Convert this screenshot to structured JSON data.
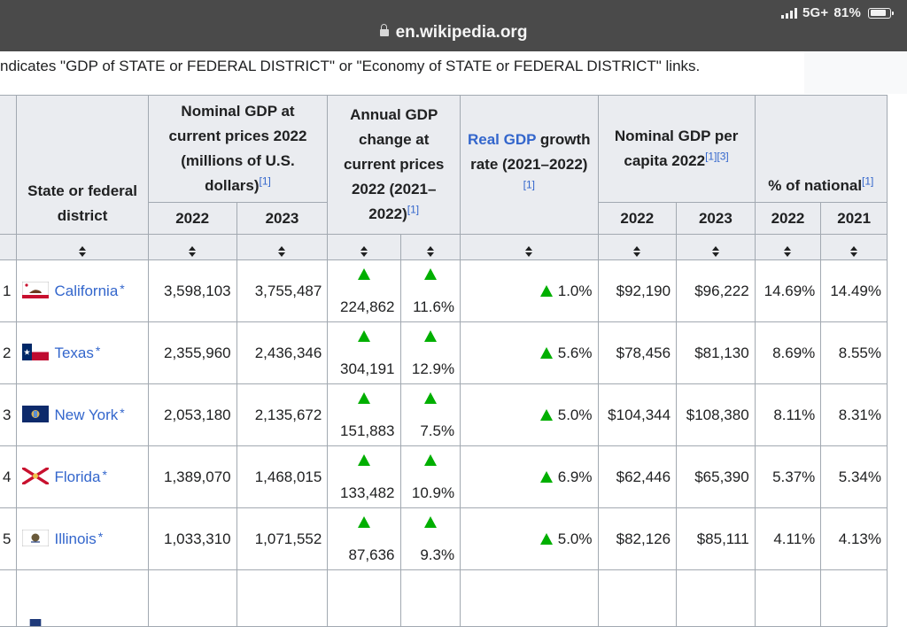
{
  "browser": {
    "signal_label": "5G+",
    "battery_label": "81%",
    "url": "en.wikipedia.org"
  },
  "notice": "ndicates \"GDP of STATE or FEDERAL DISTRICT\" or \"Economy of STATE or FEDERAL DISTRICT\" links.",
  "table": {
    "headers": {
      "state": "State or federal district",
      "nominal_gdp": "Nominal GDP at current prices 2022 (millions of U.S. dollars)",
      "nominal_gdp_ref": "[1]",
      "annual_change": "Annual GDP change at current prices 2022 (2021–2022)",
      "annual_change_ref": "[1]",
      "real_gdp_link": "Real GDP",
      "real_gdp_rest": "growth rate (2021–2022)",
      "real_gdp_ref": "[1]",
      "per_capita": "Nominal GDP per capita 2022",
      "per_capita_ref1": "[1]",
      "per_capita_ref2": "[3]",
      "pct_national": "% of national",
      "pct_national_ref": "[1]",
      "y2022a": "2022",
      "y2023a": "2023",
      "y2022b": "2022",
      "y2023b": "2023",
      "y2022c": "2022",
      "y2021c": "2021"
    },
    "star": "*",
    "rows": [
      {
        "rank": "1",
        "state": "California",
        "gdp2022": "3,598,103",
        "gdp2023": "3,755,487",
        "chg_abs": "224,862",
        "chg_pct": "11.6%",
        "real_growth": "1.0%",
        "pc2022": "$92,190",
        "pc2023": "$96,222",
        "nat2022": "14.69%",
        "nat2021": "14.49%"
      },
      {
        "rank": "2",
        "state": "Texas",
        "gdp2022": "2,355,960",
        "gdp2023": "2,436,346",
        "chg_abs": "304,191",
        "chg_pct": "12.9%",
        "real_growth": "5.6%",
        "pc2022": "$78,456",
        "pc2023": "$81,130",
        "nat2022": "8.69%",
        "nat2021": "8.55%"
      },
      {
        "rank": "3",
        "state": "New York",
        "gdp2022": "2,053,180",
        "gdp2023": "2,135,672",
        "chg_abs": "151,883",
        "chg_pct": "7.5%",
        "real_growth": "5.0%",
        "pc2022": "$104,344",
        "pc2023": "$108,380",
        "nat2022": "8.11%",
        "nat2021": "8.31%"
      },
      {
        "rank": "4",
        "state": "Florida",
        "gdp2022": "1,389,070",
        "gdp2023": "1,468,015",
        "chg_abs": "133,482",
        "chg_pct": "10.9%",
        "real_growth": "6.9%",
        "pc2022": "$62,446",
        "pc2023": "$65,390",
        "nat2022": "5.37%",
        "nat2021": "5.34%"
      },
      {
        "rank": "5",
        "state": "Illinois",
        "gdp2022": "1,033,310",
        "gdp2023": "1,071,552",
        "chg_abs": "87,636",
        "chg_pct": "9.3%",
        "real_growth": "5.0%",
        "pc2022": "$82,126",
        "pc2023": "$85,111",
        "nat2022": "4.11%",
        "nat2021": "4.13%"
      }
    ]
  },
  "icons": {
    "increase": "green-up-triangle-icon",
    "sort": "sort-icon",
    "lock": "lock-icon"
  },
  "colors": {
    "link": "#3366cc",
    "increase": "#00af00",
    "header_bg": "#eaecf0",
    "border": "#a2a9b1",
    "browser_bar": "#4a4a4a"
  }
}
